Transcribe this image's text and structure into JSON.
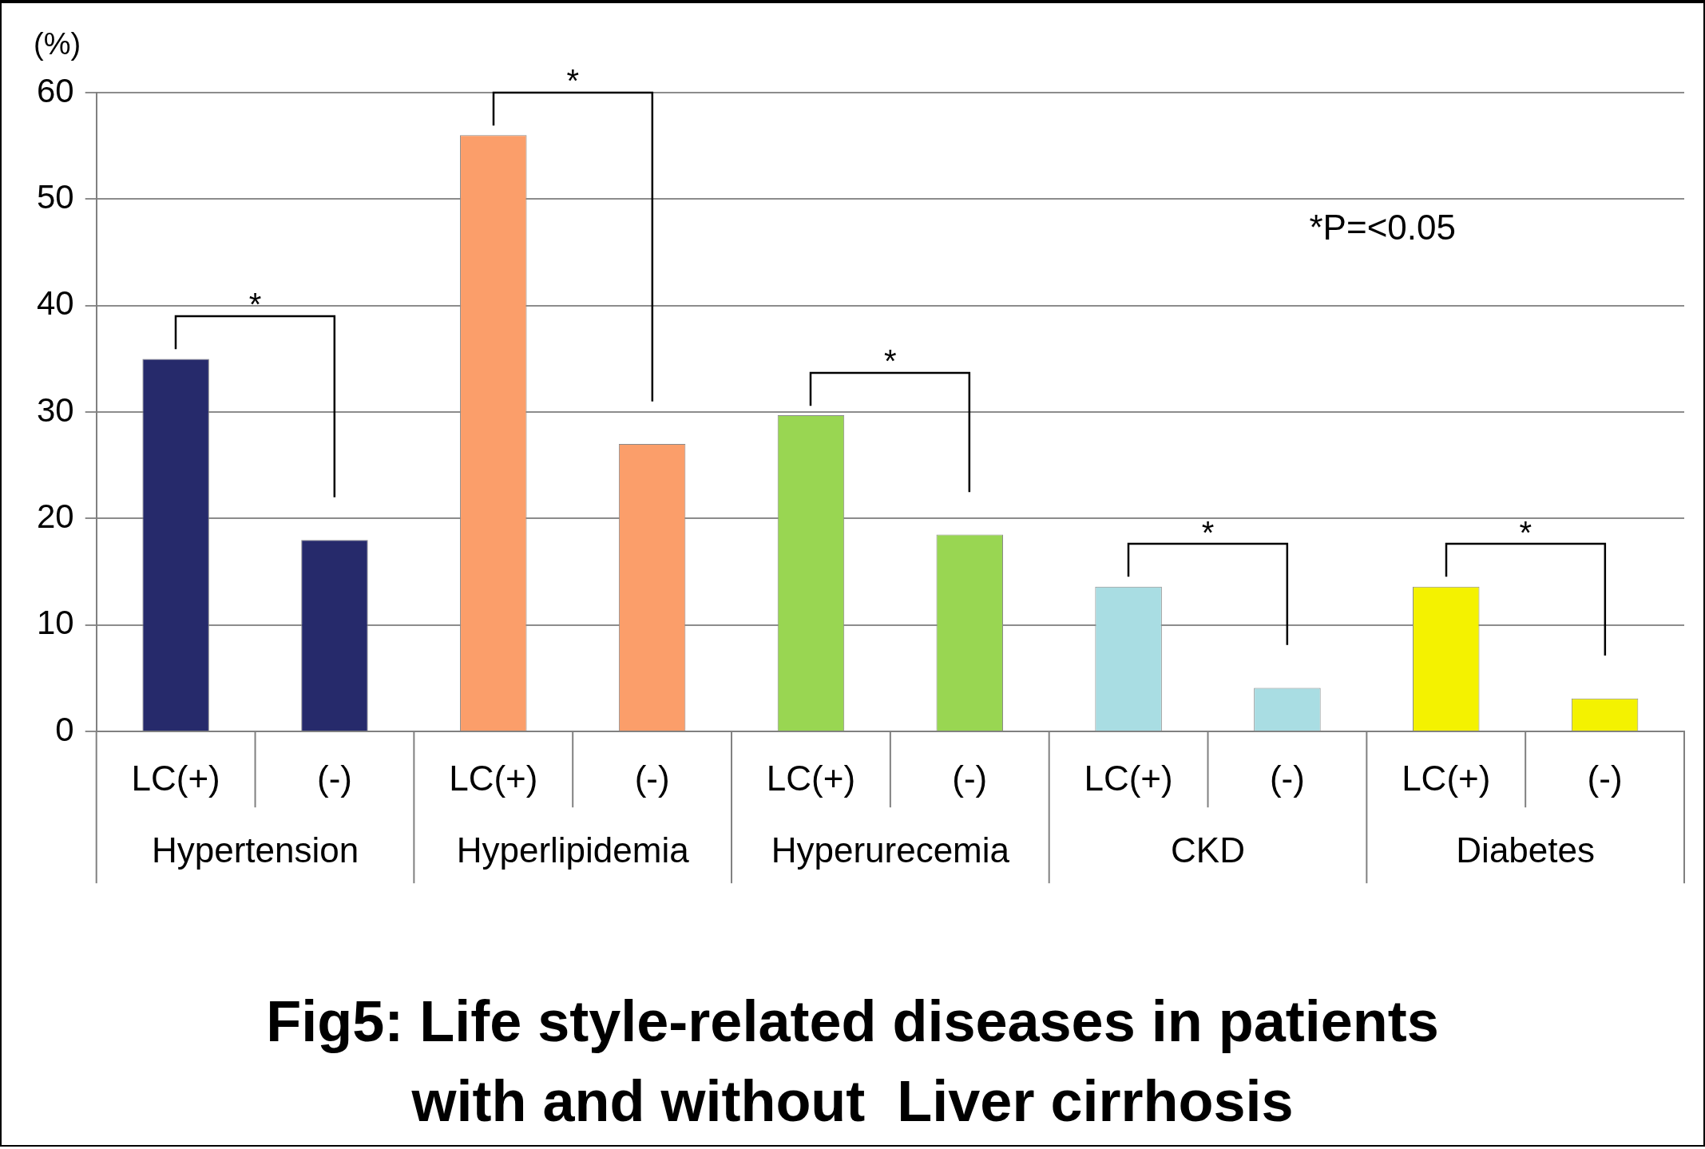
{
  "chart_data": {
    "type": "bar",
    "title": "Fig5: Life style-related diseases in patients with and without  Liver cirrhosis",
    "ylabel": "(%)",
    "categories": [
      "Hypertension",
      "Hyperlipidemia",
      "Hyperurecemia",
      "CKD",
      "Diabetes"
    ],
    "series": [
      {
        "name": "LC(+)",
        "colors": [
          "#262a6b",
          "#fb9e6a",
          "#99d652",
          "#a9dde3",
          "#f4f200"
        ],
        "values": [
          35,
          56,
          29.7,
          13.6,
          13.6
        ]
      },
      {
        "name": "(-)",
        "colors": [
          "#262a6b",
          "#fb9e6a",
          "#99d652",
          "#a9dde3",
          "#f4f200"
        ],
        "values": [
          18,
          27,
          18.5,
          4.1,
          3.1
        ]
      }
    ],
    "ylim": [
      0,
      60
    ],
    "yticks": [
      0,
      10,
      20,
      30,
      40,
      50,
      60
    ],
    "grid": "y",
    "legend": false,
    "annotations": [
      "*",
      "*",
      "*",
      "*",
      "*",
      "*P=<0.05"
    ]
  }
}
